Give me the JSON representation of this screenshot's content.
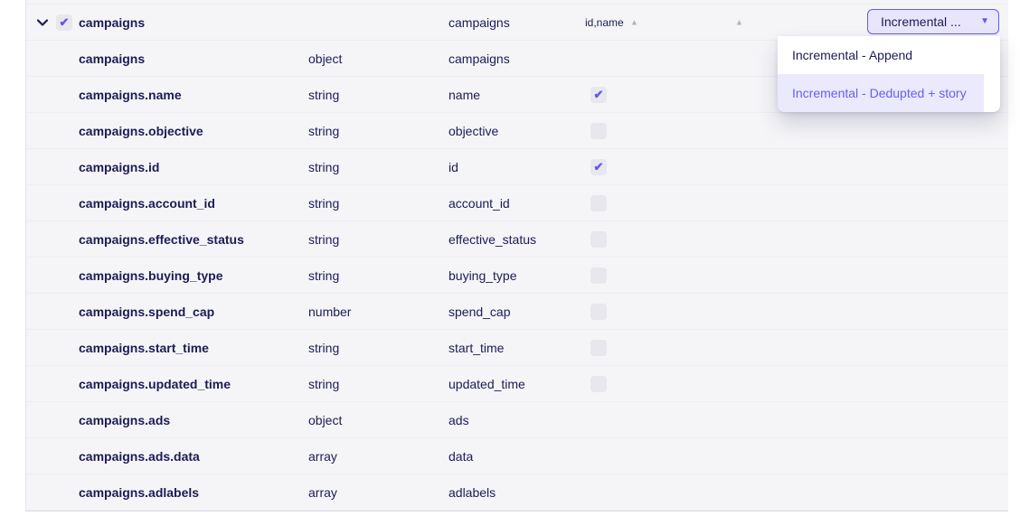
{
  "stream": {
    "expanded": true,
    "selected": true,
    "name": "campaigns",
    "destination_name": "campaigns",
    "primary_key": "id,name",
    "sync_mode_button_label": "Incremental ..."
  },
  "dropdown": {
    "options": [
      {
        "label": "Incremental - Append",
        "selected": false
      },
      {
        "label": "Incremental - Dedupted + story",
        "selected": true
      }
    ]
  },
  "fields": [
    {
      "name": "campaigns",
      "type": "object",
      "destination": "campaigns",
      "checkbox": "none"
    },
    {
      "name": "campaigns.name",
      "type": "string",
      "destination": "name",
      "checkbox": "checked"
    },
    {
      "name": "campaigns.objective",
      "type": "string",
      "destination": "objective",
      "checkbox": "unchecked"
    },
    {
      "name": "campaigns.id",
      "type": "string",
      "destination": "id",
      "checkbox": "checked"
    },
    {
      "name": "campaigns.account_id",
      "type": "string",
      "destination": "account_id",
      "checkbox": "unchecked"
    },
    {
      "name": "campaigns.effective_status",
      "type": "string",
      "destination": "effective_status",
      "checkbox": "unchecked"
    },
    {
      "name": "campaigns.buying_type",
      "type": "string",
      "destination": "buying_type",
      "checkbox": "unchecked"
    },
    {
      "name": "campaigns.spend_cap",
      "type": "number",
      "destination": "spend_cap",
      "checkbox": "unchecked"
    },
    {
      "name": "campaigns.start_time",
      "type": "string",
      "destination": "start_time",
      "checkbox": "unchecked"
    },
    {
      "name": "campaigns.updated_time",
      "type": "string",
      "destination": "updated_time",
      "checkbox": "unchecked"
    },
    {
      "name": "campaigns.ads",
      "type": "object",
      "destination": "ads",
      "checkbox": "none"
    },
    {
      "name": "campaigns.ads.data",
      "type": "array",
      "destination": "data",
      "checkbox": "none"
    },
    {
      "name": "campaigns.adlabels",
      "type": "array",
      "destination": "adlabels",
      "checkbox": "none"
    }
  ],
  "icons": {
    "chevron_down": "chevron-down-icon",
    "checkmark": "✔",
    "sort_caret_up": "▲",
    "dropdown_caret_down": "▼"
  },
  "colors": {
    "accent_purple": "#635bf5",
    "check_purple": "#6157e8",
    "row_background": "#f5f5f8",
    "text_navy": "#1c1b54",
    "menu_selected_bg": "#ebe9fc",
    "menu_selected_text": "#6760f0",
    "checkbox_bg": "#e7e7ed"
  }
}
